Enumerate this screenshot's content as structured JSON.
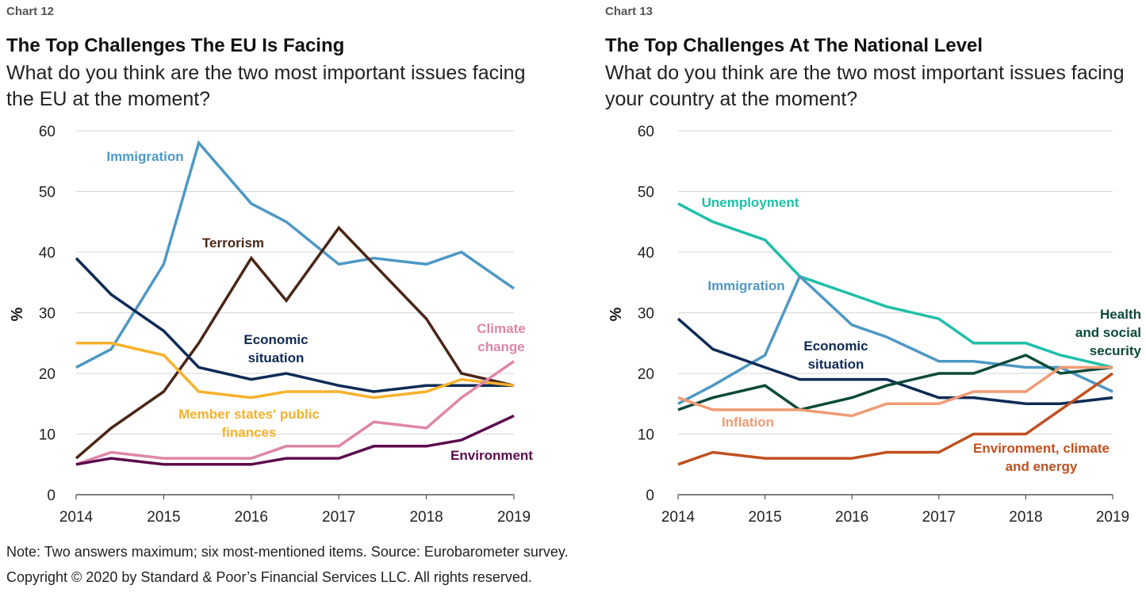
{
  "charts": [
    {
      "chart_num": "Chart 12",
      "title": "The Top Challenges The EU Is Facing",
      "subtitle": "What do you think are the two most important issues facing the EU at the moment?"
    },
    {
      "chart_num": "Chart 13",
      "title": "The Top Challenges At The National Level",
      "subtitle": "What do you think are the two most important issues facing your country at the moment?"
    }
  ],
  "chart_data": [
    {
      "type": "line",
      "title": "The Top Challenges The EU Is Facing",
      "ylabel": "%",
      "xlabel": "",
      "ylim": [
        0,
        60
      ],
      "yticks": [
        0,
        10,
        20,
        30,
        40,
        50,
        60
      ],
      "xtick_labels": [
        "2014",
        "2015",
        "2016",
        "2017",
        "2018",
        "2019"
      ],
      "x": [
        2014,
        2014.4,
        2015,
        2015.4,
        2016,
        2016.4,
        2017,
        2017.4,
        2018,
        2018.4,
        2019
      ],
      "grid": "horizontal",
      "series": [
        {
          "name": "Immigration",
          "label_lines": [
            "Immigration"
          ],
          "color": "#4e98c4",
          "values": [
            21,
            24,
            38,
            58,
            48,
            45,
            38,
            39,
            38,
            40,
            34
          ]
        },
        {
          "name": "Terrorism",
          "label_lines": [
            "Terrorism"
          ],
          "color": "#4a2616",
          "values": [
            6,
            11,
            17,
            25,
            39,
            32,
            44,
            38,
            29,
            20,
            18
          ]
        },
        {
          "name": "Economic situation",
          "label_lines": [
            "Economic",
            "situation"
          ],
          "color": "#0e2b56",
          "values": [
            39,
            33,
            27,
            21,
            19,
            20,
            18,
            17,
            18,
            18,
            18
          ]
        },
        {
          "name": "Member states' public finances",
          "label_lines": [
            "Member states' public",
            "finances"
          ],
          "color": "#f7b12b",
          "values": [
            25,
            25,
            23,
            17,
            16,
            17,
            17,
            16,
            17,
            19,
            18
          ]
        },
        {
          "name": "Climate change",
          "label_lines": [
            "Climate",
            "change"
          ],
          "color": "#de86a6",
          "values": [
            5,
            7,
            6,
            6,
            6,
            8,
            8,
            12,
            11,
            16,
            22
          ]
        },
        {
          "name": "Environment",
          "label_lines": [
            "Environment"
          ],
          "color": "#5c0a4e",
          "values": [
            5,
            6,
            5,
            5,
            5,
            6,
            6,
            8,
            8,
            9,
            13
          ]
        }
      ]
    },
    {
      "type": "line",
      "title": "The Top Challenges At The National Level",
      "ylabel": "%",
      "xlabel": "",
      "ylim": [
        0,
        60
      ],
      "yticks": [
        0,
        10,
        20,
        30,
        40,
        50,
        60
      ],
      "xtick_labels": [
        "2014",
        "2015",
        "2016",
        "2017",
        "2018",
        "2019"
      ],
      "x": [
        2014,
        2014.4,
        2015,
        2015.4,
        2016,
        2016.4,
        2017,
        2017.4,
        2018,
        2018.4,
        2019
      ],
      "grid": "horizontal",
      "series": [
        {
          "name": "Unemployment",
          "label_lines": [
            "Unemployment"
          ],
          "color": "#1fbfa8",
          "values": [
            48,
            45,
            42,
            36,
            33,
            31,
            29,
            25,
            25,
            23,
            21
          ]
        },
        {
          "name": "Immigration",
          "label_lines": [
            "Immigration"
          ],
          "color": "#4e98c4",
          "values": [
            15,
            18,
            23,
            36,
            28,
            26,
            22,
            22,
            21,
            21,
            17
          ]
        },
        {
          "name": "Economic situation",
          "label_lines": [
            "Economic",
            "situation"
          ],
          "color": "#0e2b56",
          "values": [
            29,
            24,
            21,
            19,
            19,
            19,
            16,
            16,
            15,
            15,
            16
          ]
        },
        {
          "name": "Health and social security",
          "label_lines": [
            "Health",
            "and social",
            "security"
          ],
          "color": "#0c4a3a",
          "values": [
            14,
            16,
            18,
            14,
            16,
            18,
            20,
            20,
            23,
            20,
            21
          ]
        },
        {
          "name": "Inflation",
          "label_lines": [
            "Inflation"
          ],
          "color": "#f19b74",
          "values": [
            16,
            14,
            14,
            14,
            13,
            15,
            15,
            17,
            17,
            21,
            21
          ]
        },
        {
          "name": "Environment, climate and energy",
          "label_lines": [
            "Environment, climate",
            "and energy"
          ],
          "color": "#c0501f",
          "values": [
            5,
            7,
            6,
            6,
            6,
            7,
            7,
            10,
            10,
            14,
            20
          ]
        }
      ]
    }
  ],
  "footer": {
    "note": "Note: Two answers maximum; six most-mentioned items. Source: Eurobarometer survey.",
    "copyright": "Copyright © 2020 by Standard & Poor’s Financial Services LLC. All rights reserved."
  }
}
